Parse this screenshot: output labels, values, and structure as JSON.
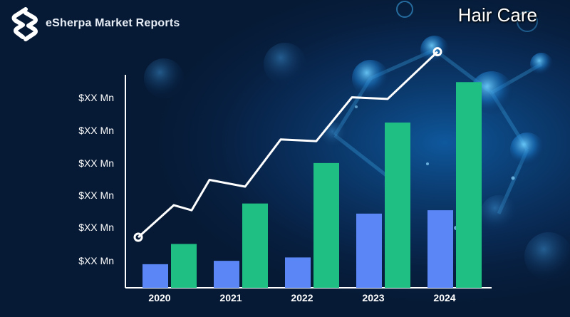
{
  "brand": {
    "name": "eSherpa Market Reports",
    "logo_icon": "esherpa-s-logo-icon",
    "logo_color": "#ffffff"
  },
  "colors": {
    "background": "#061a35",
    "series_a": "#5b86f5",
    "series_b": "#1fbe82",
    "trend_line": "#ffffff",
    "axis": "#ffffff"
  },
  "chart_data": {
    "type": "bar",
    "title": "Hair Care",
    "categories": [
      "2020",
      "2021",
      "2022",
      "2023",
      "2024"
    ],
    "y_tick_labels": [
      "$XX Mn",
      "$XX Mn",
      "$XX Mn",
      "$XX Mn",
      "$XX Mn",
      "$XX Mn"
    ],
    "ylim": [
      0,
      6
    ],
    "grid": false,
    "legend": "none",
    "series": [
      {
        "type": "bar",
        "values": [
          0.7,
          0.8,
          0.9,
          2.2,
          2.3
        ]
      },
      {
        "type": "bar",
        "values": [
          1.3,
          2.5,
          3.7,
          4.9,
          6.1
        ]
      }
    ],
    "trend_line": {
      "type": "line",
      "points": [
        [
          0,
          1.5
        ],
        [
          0.5,
          2.45
        ],
        [
          0.75,
          2.3
        ],
        [
          1.0,
          3.2
        ],
        [
          1.5,
          3.0
        ],
        [
          2.0,
          4.4
        ],
        [
          2.5,
          4.35
        ],
        [
          3.0,
          5.65
        ],
        [
          3.5,
          5.6
        ],
        [
          4.2,
          7.0
        ]
      ]
    }
  }
}
